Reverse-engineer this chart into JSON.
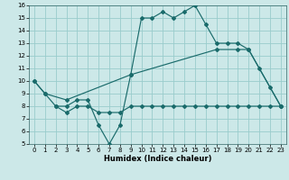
{
  "title": "",
  "xlabel": "Humidex (Indice chaleur)",
  "xlim": [
    -0.5,
    23.5
  ],
  "ylim": [
    5,
    16
  ],
  "yticks": [
    5,
    6,
    7,
    8,
    9,
    10,
    11,
    12,
    13,
    14,
    15,
    16
  ],
  "xticks": [
    0,
    1,
    2,
    3,
    4,
    5,
    6,
    7,
    8,
    9,
    10,
    11,
    12,
    13,
    14,
    15,
    16,
    17,
    18,
    19,
    20,
    21,
    22,
    23
  ],
  "background_color": "#cce8e8",
  "grid_color": "#99cccc",
  "line_color": "#1a6b6b",
  "line1_x": [
    0,
    1,
    2,
    3,
    4,
    5,
    6,
    7,
    8,
    9,
    10,
    11,
    12,
    13,
    14,
    15,
    16,
    17,
    18,
    19,
    20,
    21,
    22,
    23
  ],
  "line1_y": [
    10,
    9,
    8,
    8,
    8.5,
    8.5,
    6.5,
    5,
    6.5,
    10.5,
    15,
    15,
    15.5,
    15,
    15.5,
    16,
    14.5,
    13,
    13,
    13,
    12.5,
    11,
    9.5,
    8
  ],
  "line2_x": [
    0,
    1,
    3,
    9,
    17,
    19,
    20,
    23
  ],
  "line2_y": [
    10,
    9,
    8.5,
    10.5,
    12.5,
    12.5,
    12.5,
    8
  ],
  "line3_x": [
    2,
    3,
    4,
    5,
    6,
    7,
    8,
    9,
    10,
    11,
    12,
    13,
    14,
    15,
    16,
    17,
    18,
    19,
    20,
    21,
    22,
    23
  ],
  "line3_y": [
    8,
    7.5,
    8,
    8,
    7.5,
    7.5,
    7.5,
    8,
    8,
    8,
    8,
    8,
    8,
    8,
    8,
    8,
    8,
    8,
    8,
    8,
    8,
    8
  ],
  "xlabel_fontsize": 6,
  "tick_fontsize": 5
}
